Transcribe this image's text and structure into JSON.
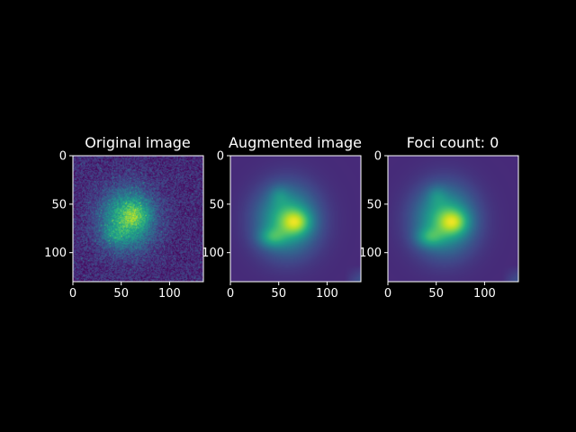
{
  "figure": {
    "background": "#000000",
    "foreground": "#ffffff"
  },
  "chart_data": [
    {
      "type": "heatmap",
      "title": "Original image",
      "colormap": "viridis",
      "rendering": "noisy",
      "xlim": [
        0,
        135
      ],
      "ylim": [
        130,
        0
      ],
      "xticks": [
        0,
        50,
        100
      ],
      "yticks": [
        0,
        50,
        100
      ],
      "xlabel": "",
      "ylabel": "",
      "blobs": [
        {
          "cx": 56,
          "cy": 65,
          "rx": 27,
          "ry": 30,
          "amp": 0.55
        },
        {
          "cx": 65,
          "cy": 60,
          "rx": 14,
          "ry": 14,
          "amp": 0.2
        },
        {
          "cx": 42,
          "cy": 82,
          "rx": 12,
          "ry": 10,
          "amp": 0.15
        }
      ]
    },
    {
      "type": "heatmap",
      "title": "Augmented image",
      "colormap": "viridis",
      "rendering": "smooth",
      "xlim": [
        0,
        135
      ],
      "ylim": [
        130,
        0
      ],
      "xticks": [
        0,
        50,
        100
      ],
      "yticks": [
        0,
        50,
        100
      ],
      "xlabel": "",
      "ylabel": "",
      "blobs": [
        {
          "cx": 58,
          "cy": 66,
          "rx": 30,
          "ry": 33,
          "amp": 0.55
        },
        {
          "cx": 68,
          "cy": 68,
          "rx": 15,
          "ry": 13,
          "amp": 0.35
        },
        {
          "cx": 42,
          "cy": 84,
          "rx": 14,
          "ry": 10,
          "amp": 0.25
        },
        {
          "cx": 50,
          "cy": 40,
          "rx": 10,
          "ry": 10,
          "amp": 0.12
        }
      ]
    },
    {
      "type": "heatmap",
      "title": "Foci count: 0",
      "colormap": "viridis",
      "rendering": "smooth",
      "xlim": [
        0,
        135
      ],
      "ylim": [
        130,
        0
      ],
      "xticks": [
        0,
        50,
        100
      ],
      "yticks": [
        0,
        50,
        100
      ],
      "xlabel": "",
      "ylabel": "",
      "blobs": [
        {
          "cx": 58,
          "cy": 66,
          "rx": 30,
          "ry": 33,
          "amp": 0.55
        },
        {
          "cx": 68,
          "cy": 68,
          "rx": 15,
          "ry": 13,
          "amp": 0.35
        },
        {
          "cx": 42,
          "cy": 84,
          "rx": 14,
          "ry": 10,
          "amp": 0.25
        },
        {
          "cx": 50,
          "cy": 40,
          "rx": 10,
          "ry": 10,
          "amp": 0.12
        }
      ]
    }
  ]
}
